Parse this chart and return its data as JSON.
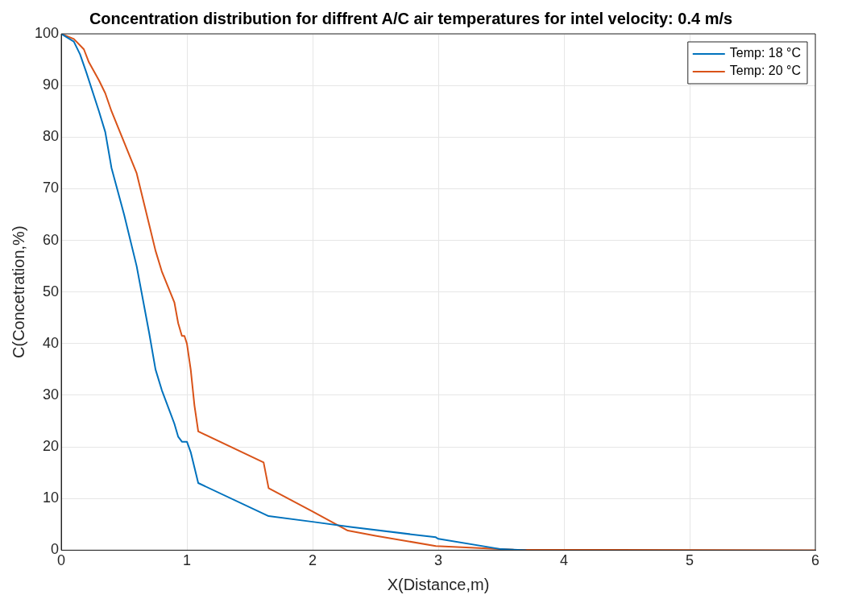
{
  "chart_data": {
    "type": "line",
    "title": "Concentration distribution for diffrent A/C air temperatures for intel velocity: 0.4 m/s",
    "xlabel": "X(Distance,m)",
    "ylabel": "C(Concetration,%)",
    "xlim": [
      0,
      6
    ],
    "xticks": [
      0,
      1,
      2,
      3,
      4,
      5,
      6
    ],
    "ylim": [
      0,
      100
    ],
    "yticks": [
      0,
      10,
      20,
      30,
      40,
      50,
      60,
      70,
      80,
      90,
      100
    ],
    "grid": true,
    "legend": "top right",
    "marker": "none",
    "line_style": "solid",
    "series": [
      {
        "name": "Temp: 18 °C",
        "color": "#0072bd",
        "x": [
          0,
          0.1,
          0.15,
          0.2,
          0.3,
          0.35,
          0.4,
          0.5,
          0.6,
          0.7,
          0.75,
          0.8,
          0.9,
          0.93,
          0.96,
          1.0,
          1.03,
          1.06,
          1.09,
          1.65,
          2.0,
          2.3,
          2.98,
          3.0,
          3.5,
          3.7
        ],
        "values": [
          100,
          98.5,
          96,
          92.5,
          85,
          81,
          74,
          65,
          55,
          42,
          35,
          31,
          24.5,
          22,
          21,
          21,
          19,
          16,
          13,
          6.6,
          5.5,
          4.5,
          2.5,
          2.2,
          0.2,
          0
        ]
      },
      {
        "name": "Temp: 20 °C",
        "color": "#d95319",
        "x": [
          0,
          0.1,
          0.18,
          0.22,
          0.3,
          0.35,
          0.4,
          0.5,
          0.6,
          0.7,
          0.75,
          0.8,
          0.9,
          0.93,
          0.96,
          0.98,
          1.0,
          1.03,
          1.06,
          1.09,
          1.61,
          1.65,
          2.0,
          2.28,
          2.5,
          2.98,
          3.6,
          6
        ],
        "values": [
          100,
          99,
          97,
          94.5,
          91,
          88.5,
          85,
          79,
          73,
          63,
          58,
          54,
          48,
          44,
          41.5,
          41.5,
          40,
          35,
          28,
          23,
          17,
          12,
          7.5,
          3.8,
          2.8,
          0.8,
          0.1,
          0
        ]
      }
    ]
  }
}
